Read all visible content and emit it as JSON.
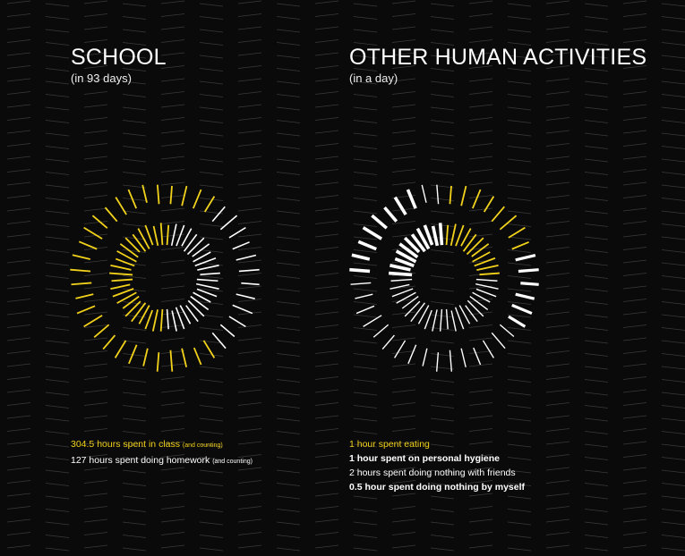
{
  "colors": {
    "background": "#0a0a0a",
    "yellow": "#f2d21b",
    "white": "#ffffff",
    "pattern": "#3a3a3a"
  },
  "school": {
    "title": "SCHOOL",
    "subtitle": "(in 93 days)",
    "legend": {
      "class_text": "304.5 hours spent in class",
      "class_note": "(and counting)",
      "homework_text": "127 hours  spent  doing homework",
      "homework_note": "(and counting)"
    },
    "rings": [
      {
        "ring": "outer",
        "total_ticks": 40,
        "yellow_ticks": 28,
        "white_ticks": 12
      },
      {
        "ring": "inner",
        "total_ticks": 44,
        "yellow_ticks": 23,
        "white_ticks": 21
      }
    ]
  },
  "other": {
    "title": "OTHER HUMAN ACTIVITIES",
    "subtitle": "(in a day)",
    "legend": {
      "eating": "1 hour spent eating",
      "hygiene": "1 hour spent on personal hygiene",
      "friends": "2 hours spent doing nothing with friends",
      "myself": "0.5 hour spent doing nothing by myself"
    },
    "rings": [
      {
        "ring": "outer",
        "total_ticks": 40,
        "yellow_ticks": 8,
        "white_bold_ticks": 8,
        "white_thin_ticks": 24
      },
      {
        "ring": "inner",
        "total_ticks": 44,
        "yellow_ticks": 11,
        "white_bold_ticks": 11,
        "white_thin_ticks": 22
      }
    ]
  }
}
